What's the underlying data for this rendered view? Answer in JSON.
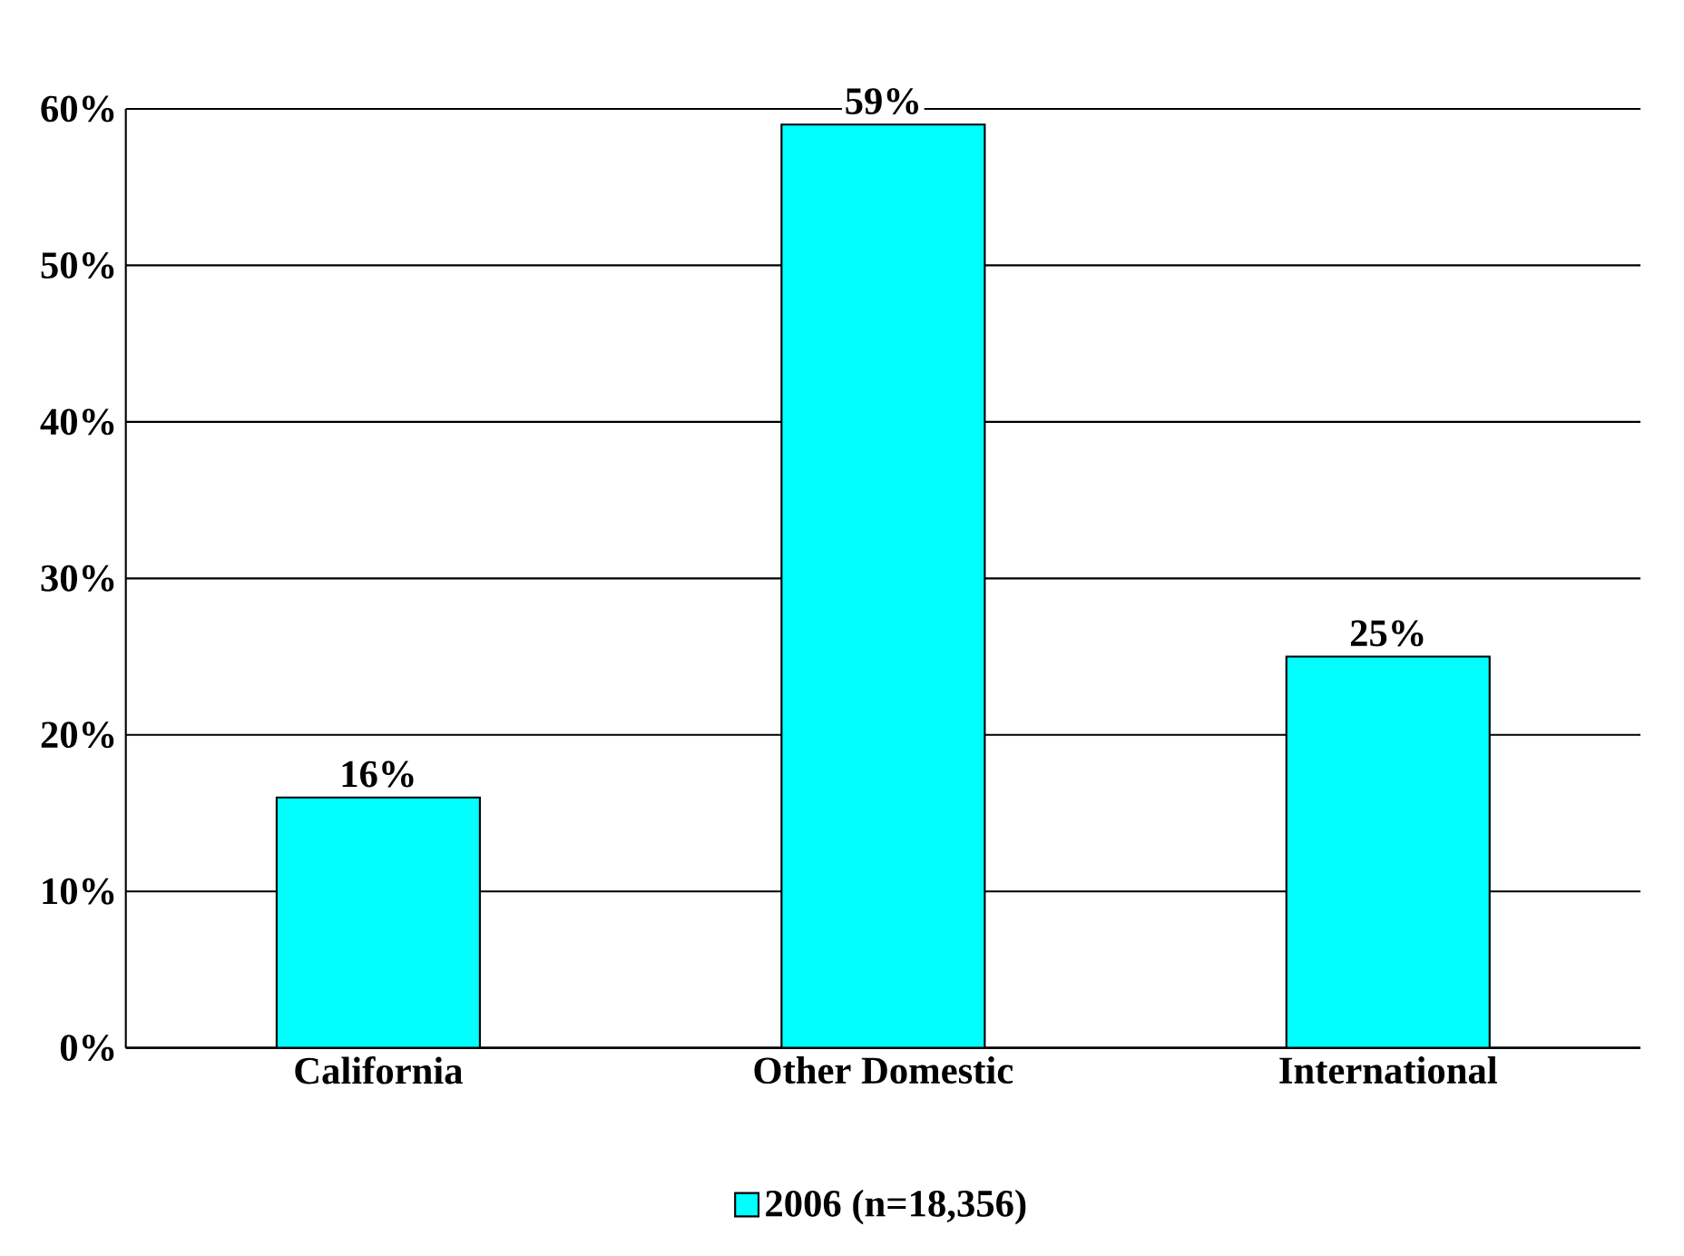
{
  "chart_data": {
    "type": "bar",
    "categories": [
      "California",
      "Other Domestic",
      "International"
    ],
    "series": [
      {
        "name": "2006 (n=18,356)",
        "color": "#00ffff",
        "values": [
          16,
          59,
          25
        ],
        "value_labels": [
          "16%",
          "59%",
          "25%"
        ]
      }
    ],
    "ylim": [
      0,
      60
    ],
    "yticks": [
      {
        "value": 0,
        "label": "0%"
      },
      {
        "value": 10,
        "label": "10%"
      },
      {
        "value": 20,
        "label": "20%"
      },
      {
        "value": 30,
        "label": "30%"
      },
      {
        "value": 40,
        "label": "40%"
      },
      {
        "value": 50,
        "label": "50%"
      },
      {
        "value": 60,
        "label": "60%"
      }
    ],
    "grid": "y",
    "legend": "bottom"
  }
}
